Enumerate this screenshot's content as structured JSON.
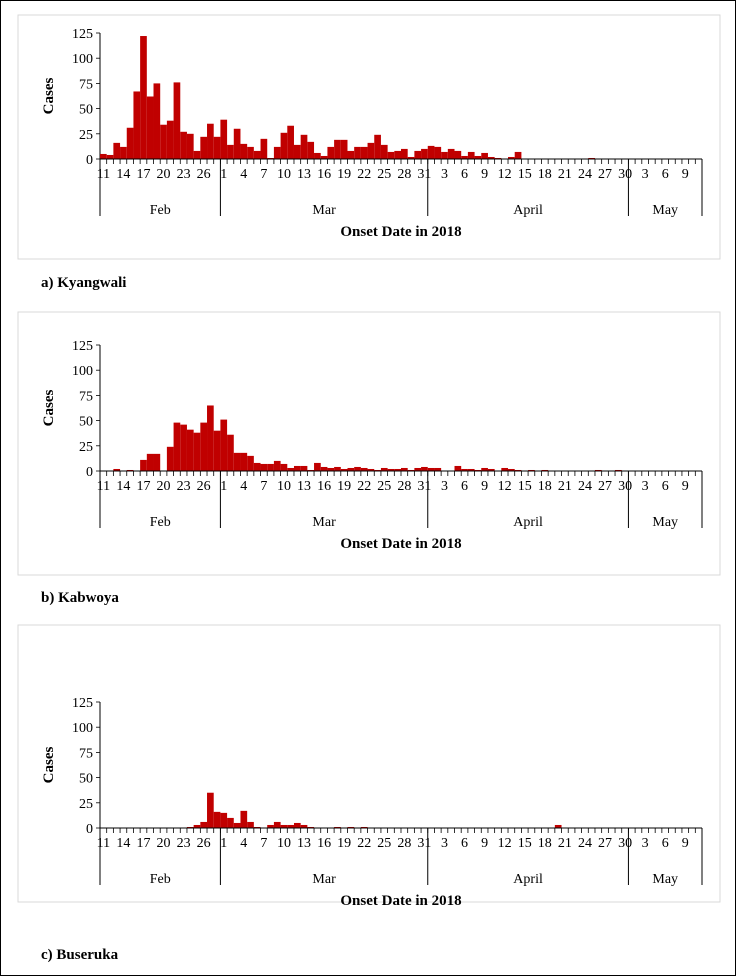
{
  "colors": {
    "bar": "#c00000",
    "axis": "#000000",
    "frame": "#d9d9d9"
  },
  "xtick_labels": [
    "11",
    "14",
    "17",
    "20",
    "23",
    "26",
    "1",
    "4",
    "7",
    "10",
    "13",
    "16",
    "19",
    "22",
    "25",
    "28",
    "31",
    "3",
    "6",
    "9",
    "12",
    "15",
    "18",
    "21",
    "24",
    "27",
    "30",
    "3",
    "6",
    "9"
  ],
  "months": [
    "Feb",
    "Mar",
    "April",
    "May"
  ],
  "chart_data": [
    {
      "type": "bar",
      "caption": "a)  Kyangwali",
      "ylabel": "Cases",
      "xlabel": "Onset Date in 2018",
      "ylim": [
        0,
        125
      ],
      "yticks": [
        0,
        25,
        50,
        75,
        100,
        125
      ],
      "x_start": "2018-02-11",
      "x_end": "2018-05-11",
      "values": [
        5,
        4,
        16,
        12,
        31,
        67,
        122,
        62,
        75,
        34,
        38,
        76,
        27,
        25,
        8,
        22,
        35,
        22,
        39,
        14,
        30,
        15,
        12,
        8,
        20,
        1,
        12,
        26,
        33,
        14,
        24,
        17,
        6,
        3,
        12,
        19,
        19,
        8,
        12,
        12,
        16,
        24,
        14,
        7,
        8,
        10,
        2,
        8,
        10,
        13,
        12,
        7,
        10,
        8,
        3,
        7,
        3,
        6,
        2,
        1,
        0,
        2,
        7,
        0,
        0,
        0,
        0,
        0,
        0,
        0,
        0,
        0,
        0,
        1,
        0,
        0,
        0,
        0,
        0,
        0,
        0,
        0,
        0,
        0,
        0,
        0,
        0,
        0,
        0,
        0
      ]
    },
    {
      "type": "bar",
      "caption": "b)  Kabwoya",
      "ylabel": "Cases",
      "xlabel": "Onset Date in 2018",
      "ylim": [
        0,
        125
      ],
      "yticks": [
        0,
        25,
        50,
        75,
        100,
        125
      ],
      "x_start": "2018-02-11",
      "x_end": "2018-05-11",
      "values": [
        0,
        0,
        2,
        0,
        1,
        0,
        11,
        17,
        17,
        0,
        24,
        48,
        46,
        41,
        38,
        48,
        65,
        40,
        51,
        36,
        18,
        18,
        15,
        8,
        7,
        7,
        10,
        7,
        3,
        5,
        5,
        1,
        8,
        4,
        3,
        4,
        2,
        3,
        4,
        3,
        2,
        1,
        3,
        2,
        2,
        3,
        1,
        3,
        4,
        3,
        3,
        0,
        0,
        5,
        2,
        2,
        1,
        3,
        2,
        0,
        3,
        2,
        1,
        0,
        1,
        0,
        1,
        0,
        0,
        0,
        0,
        0,
        0,
        0,
        1,
        0,
        0,
        1,
        0,
        0,
        0,
        0,
        0,
        0,
        0,
        0,
        0,
        0,
        0,
        0
      ]
    },
    {
      "type": "bar",
      "caption": "c)  Buseruka",
      "ylabel": "Cases",
      "xlabel": "Onset Date in 2018",
      "ylim": [
        0,
        125
      ],
      "yticks": [
        0,
        25,
        50,
        75,
        100,
        125
      ],
      "x_start": "2018-02-11",
      "x_end": "2018-05-11",
      "values": [
        0,
        0,
        0,
        0,
        0,
        0,
        0,
        0,
        0,
        0,
        0,
        0,
        0,
        1,
        3,
        6,
        35,
        16,
        15,
        10,
        5,
        17,
        6,
        1,
        0,
        3,
        6,
        3,
        3,
        5,
        3,
        1,
        0,
        0,
        0,
        1,
        0,
        1,
        0,
        1,
        0,
        0,
        0,
        0,
        0,
        0,
        0,
        0,
        0,
        0,
        0,
        0,
        0,
        0,
        0,
        0,
        0,
        0,
        0,
        0,
        0,
        0,
        0,
        0,
        0,
        0,
        0,
        0,
        3,
        0,
        0,
        0,
        0,
        0,
        0,
        0,
        0,
        0,
        0,
        0,
        0,
        0,
        0,
        0,
        0,
        0,
        0,
        0,
        0,
        0
      ]
    }
  ]
}
